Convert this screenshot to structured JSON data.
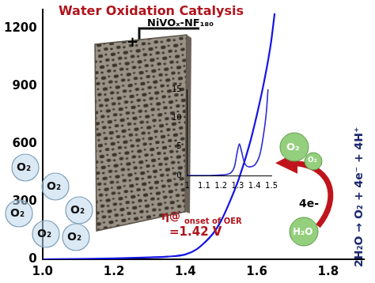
{
  "chart_data": [
    {
      "type": "line",
      "title": "Water Oxidation Catalysis",
      "x": [
        1.0,
        1.1,
        1.2,
        1.3,
        1.35,
        1.4,
        1.43,
        1.45,
        1.48,
        1.5,
        1.52,
        1.55,
        1.58,
        1.6,
        1.62,
        1.64,
        1.65
      ],
      "values": [
        0,
        2,
        5,
        10,
        14,
        25,
        50,
        80,
        140,
        200,
        280,
        420,
        600,
        750,
        920,
        1130,
        1280
      ],
      "color": "#1414e6",
      "xlim": [
        1.0,
        1.9
      ],
      "xticks": [
        {
          "value": 1.0,
          "label": "1.0"
        },
        1.2,
        1.4,
        1.6,
        1.8
      ],
      "ylim": [
        0,
        1300
      ],
      "yticks": [
        0,
        300,
        600,
        900,
        1200
      ],
      "grid": false,
      "annotations": [
        "+",
        "NiVOₓ-NF₁₈₀",
        "O₂",
        "O₂",
        "O₂",
        "O₂",
        "O₂",
        "O₂",
        "η@",
        "onset of OER",
        "=1.42 V",
        "4e-",
        "O₂",
        "O₂",
        "H₂O",
        "2H₂O → O₂ + 4e⁻ + 4H⁺"
      ]
    },
    {
      "type": "line",
      "x": [
        1.0,
        1.1,
        1.2,
        1.25,
        1.28,
        1.3,
        1.31,
        1.32,
        1.34,
        1.37,
        1.4,
        1.43,
        1.45,
        1.47,
        1.48
      ],
      "values": [
        0,
        0,
        0.1,
        0.3,
        1.5,
        4.5,
        5.5,
        4.5,
        2.2,
        1.5,
        1.8,
        3.5,
        6.5,
        11,
        15
      ],
      "color": "#2a2ad0",
      "xlim": [
        1.0,
        1.5
      ],
      "xticks": [
        1,
        1.1,
        1.2,
        1.3,
        1.4,
        1.5
      ],
      "ylim": [
        0,
        15
      ],
      "yticks": [
        0,
        5,
        10,
        15
      ],
      "grid": false
    }
  ]
}
